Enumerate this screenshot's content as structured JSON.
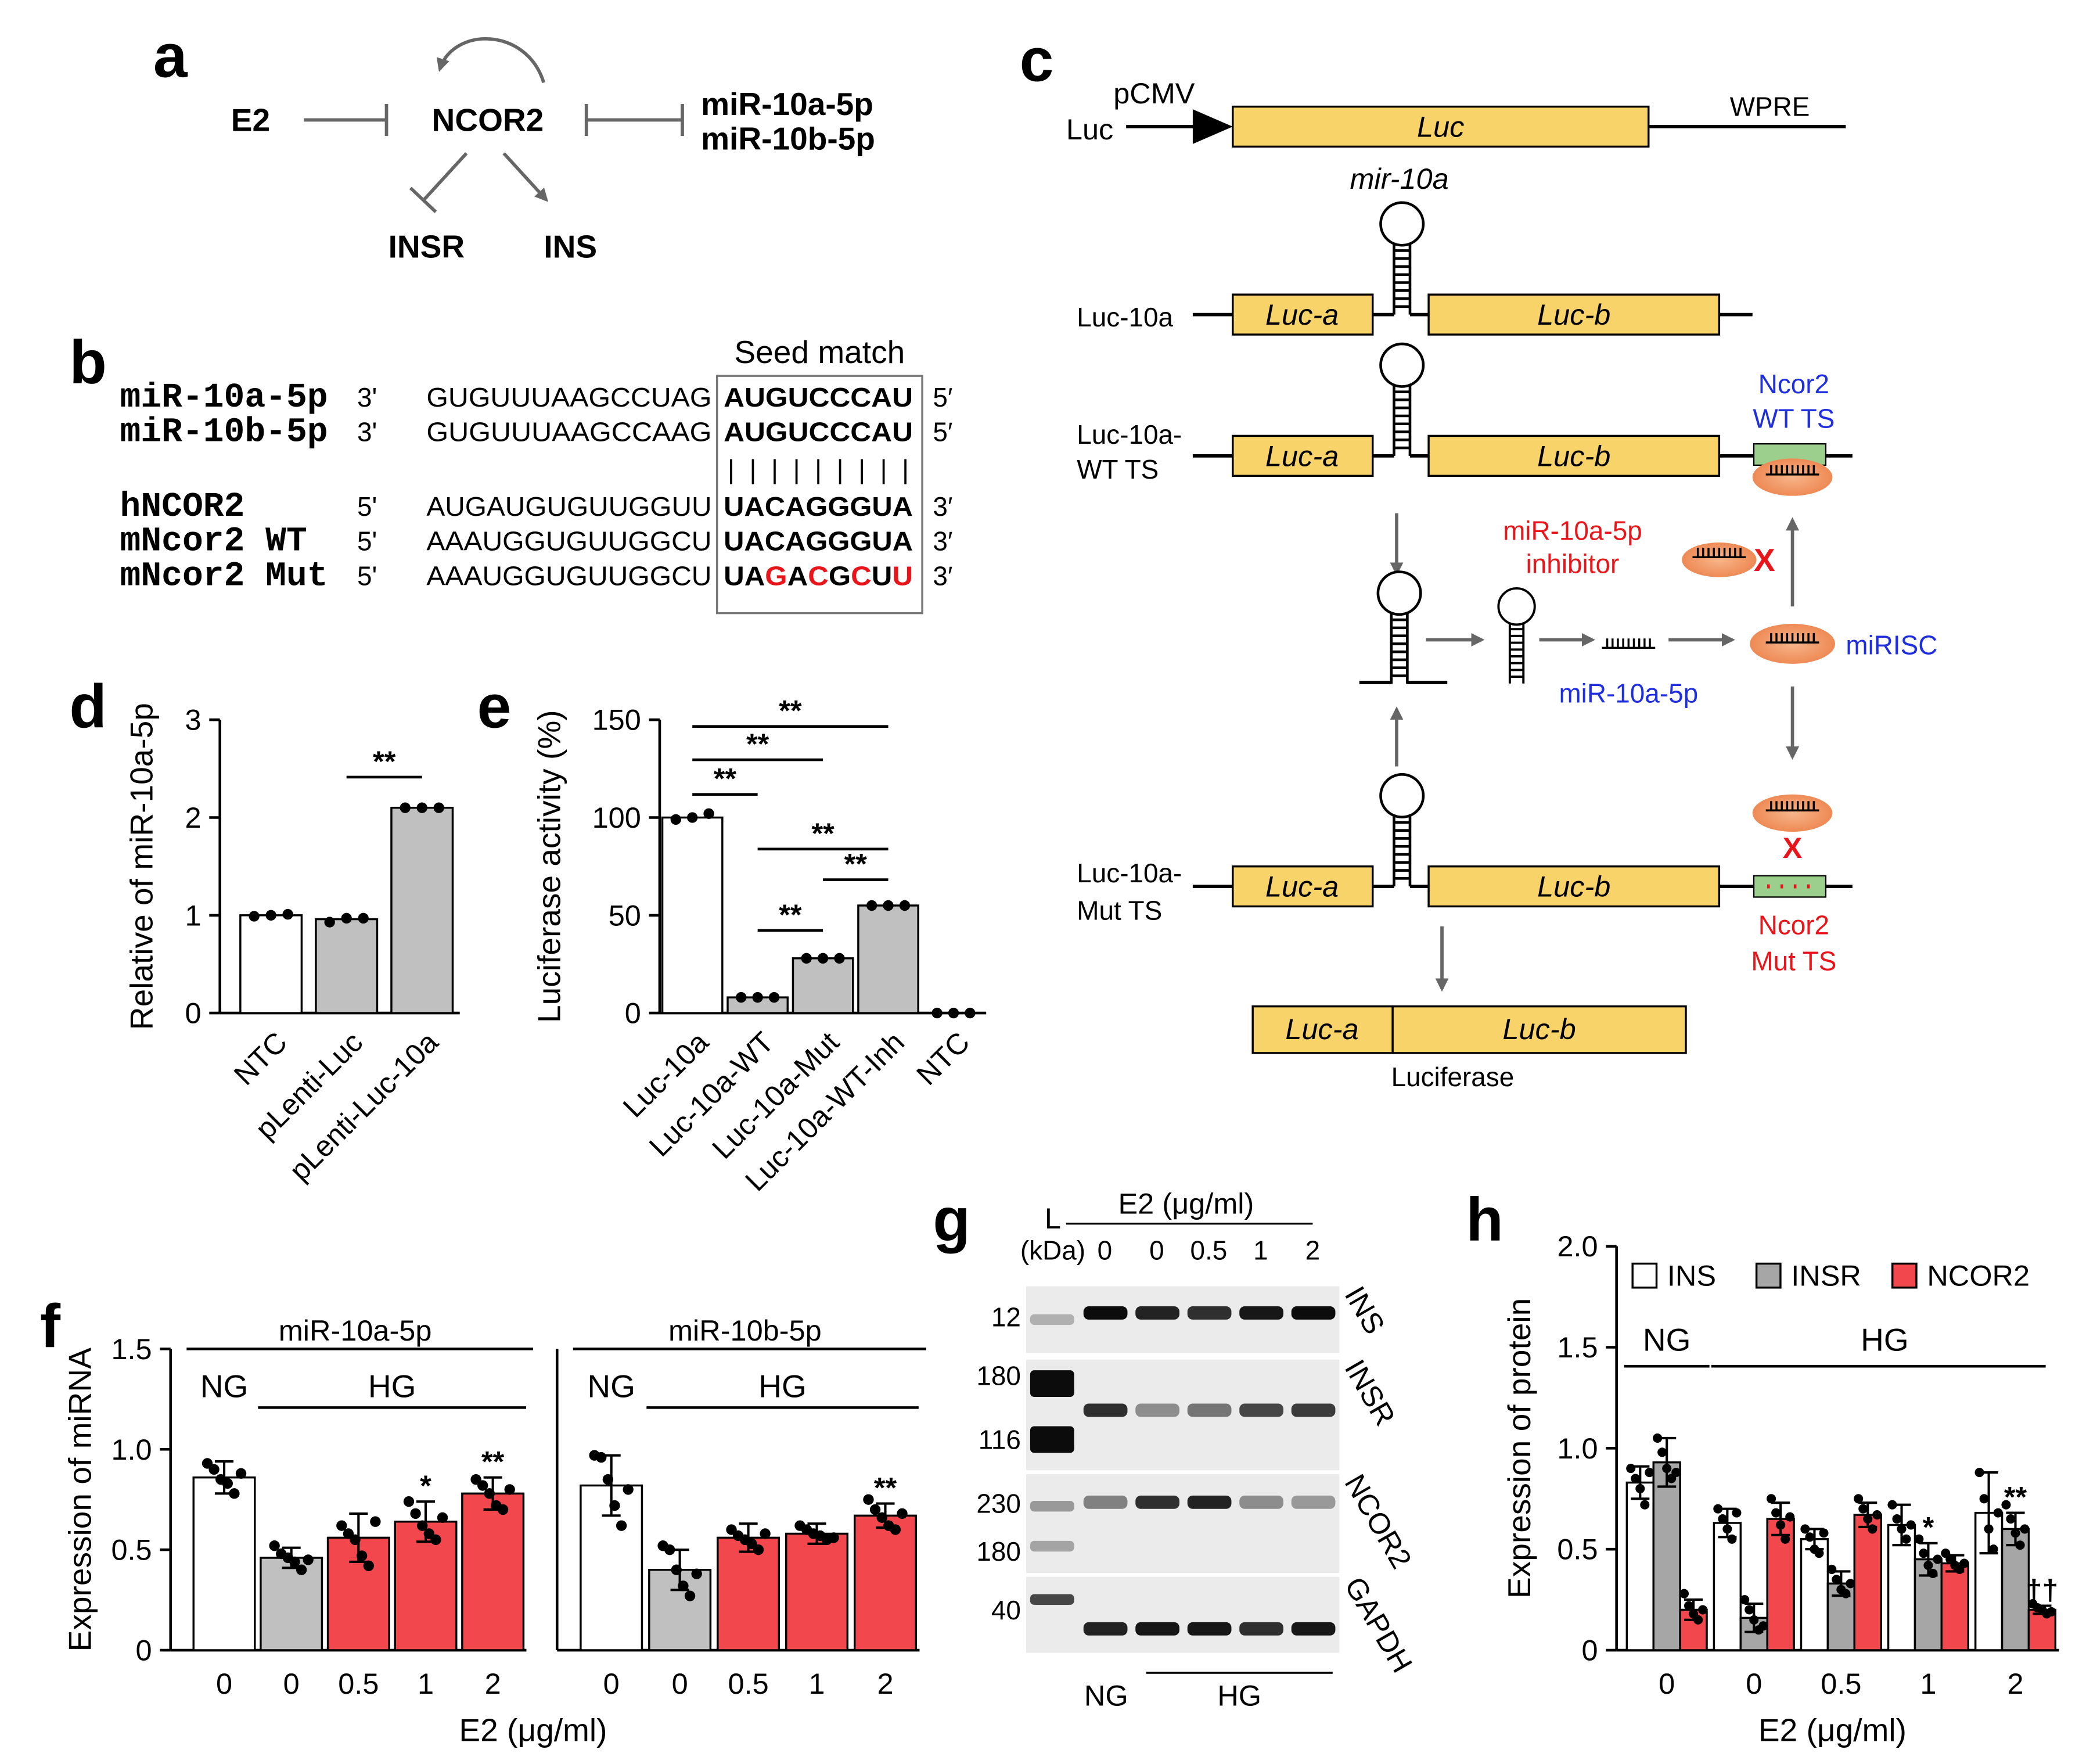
{
  "panel_a": {
    "label": "a",
    "e2": "E2",
    "ncor2": "NCOR2",
    "mir10a": "miR-10a-5p",
    "mir10b": "miR-10b-5p",
    "insr": "INSR",
    "ins": "INS"
  },
  "panel_b": {
    "label": "b",
    "box_title": "Seed match",
    "pairing": "|||||||||",
    "rows": [
      {
        "name": "miR-10a-5p",
        "left_end": "3'",
        "seq": "GUGUUUAAGCCUAG",
        "seed": [
          {
            "text": "AUGUCCCAU",
            "color": "#000000"
          }
        ],
        "right_end": "5′"
      },
      {
        "name": "miR-10b-5p",
        "left_end": "3'",
        "seq": "GUGUUUAAGCCAAG",
        "seed": [
          {
            "text": "AUGUCCCAU",
            "color": "#000000"
          }
        ],
        "right_end": "5′"
      },
      {
        "name": "hNCOR2",
        "left_end": "5'",
        "seq": "AUGAUGUGUUGGUU",
        "seed": [
          {
            "text": "UACAGGGUA",
            "color": "#000000"
          }
        ],
        "right_end": "3′"
      },
      {
        "name": "mNcor2 WT",
        "left_end": "5'",
        "seq": "AAAUGGUGUUGGCU",
        "seed": [
          {
            "text": "UACAGGGUA",
            "color": "#000000"
          }
        ],
        "right_end": "3′"
      },
      {
        "name": "mNcor2 Mut",
        "left_end": "5'",
        "seq": "AAAUGGUGUUGGCU",
        "seed": [
          {
            "text": "UA",
            "color": "#000000"
          },
          {
            "text": "G",
            "color": "#e8161b"
          },
          {
            "text": "A",
            "color": "#000000"
          },
          {
            "text": "C",
            "color": "#e8161b"
          },
          {
            "text": "G",
            "color": "#000000"
          },
          {
            "text": "C",
            "color": "#e8161b"
          },
          {
            "text": "U",
            "color": "#000000"
          },
          {
            "text": "U",
            "color": "#e8161b"
          }
        ],
        "right_end": "3′"
      }
    ]
  },
  "panel_c": {
    "label": "c",
    "vector_name": "Luc",
    "promoter": "pCMV",
    "gene": "Luc",
    "wpre": "WPRE",
    "hairpin": "mir-10a",
    "construct_1": "Luc-10a",
    "construct_2": [
      "Luc-10a-",
      "WT TS"
    ],
    "construct_3": [
      "Luc-10a-",
      "Mut TS"
    ],
    "part_a": "Luc-a",
    "part_b": "Luc-b",
    "wt_site": [
      "Ncor2",
      "WT TS"
    ],
    "mut_site": [
      "Ncor2",
      "Mut TS"
    ],
    "inhibitor": [
      "miR-10a-5p",
      "inhibitor"
    ],
    "mature": "miR-10a-5p",
    "complex": "miRISC",
    "block": "X",
    "product": "Luciferase"
  },
  "panel_g": {
    "label": "g",
    "ladder": "L",
    "unit": "(kDa)",
    "treatment": "E2 (μg/ml)",
    "lanes": [
      "0",
      "0",
      "0.5",
      "1",
      "2"
    ],
    "markers": [
      "12",
      "180",
      "116",
      "230",
      "180",
      "40"
    ],
    "proteins": [
      "INS",
      "INSR",
      "NCOR2",
      "GAPDH"
    ],
    "groups": [
      "NG",
      "HG"
    ]
  },
  "chart_data": [
    {
      "type": "bar",
      "label": "d",
      "ylabel": "Relative of miR-10a-5p",
      "categories": [
        "NTC",
        "pLenti-Luc",
        "pLenti-Luc-10a"
      ],
      "values": [
        1.0,
        0.96,
        2.1
      ],
      "colors": [
        "#ffffff",
        "#c0c0c0",
        "#c0c0c0"
      ],
      "points": [
        [
          0.99,
          1.0,
          1.01
        ],
        [
          0.93,
          0.97,
          0.97
        ],
        [
          2.1,
          2.1,
          2.1
        ]
      ],
      "ylim": [
        0,
        3
      ],
      "yticks": [
        0,
        1,
        2,
        3
      ],
      "brackets": [
        {
          "between": [
            "pLenti-Luc",
            "pLenti-Luc-10a"
          ],
          "label": "**"
        }
      ]
    },
    {
      "type": "bar",
      "label": "e",
      "ylabel": "Luciferase activity (%)",
      "categories": [
        "Luc-10a",
        "Luc-10a-WT",
        "Luc-10a-Mut",
        "Luc-10a-WT-Inh",
        "NTC"
      ],
      "values": [
        100,
        8,
        28,
        55,
        0
      ],
      "colors": [
        "#ffffff",
        "#c0c0c0",
        "#c0c0c0",
        "#c0c0c0",
        "#c0c0c0"
      ],
      "points": [
        [
          99,
          100,
          102
        ],
        [
          8,
          8,
          8
        ],
        [
          28,
          28,
          28
        ],
        [
          55,
          55,
          55
        ],
        [
          0,
          0,
          0
        ]
      ],
      "ylim": [
        0,
        150
      ],
      "yticks": [
        0,
        50,
        100,
        150
      ],
      "brackets": [
        {
          "between": [
            "Luc-10a",
            "Luc-10a-WT-Inh"
          ],
          "label": "**"
        },
        {
          "between": [
            "Luc-10a",
            "Luc-10a-Mut"
          ],
          "label": "**"
        },
        {
          "between": [
            "Luc-10a",
            "Luc-10a-WT"
          ],
          "label": "**"
        },
        {
          "between": [
            "Luc-10a-WT",
            "Luc-10a-WT-Inh"
          ],
          "label": "**"
        },
        {
          "between": [
            "Luc-10a-Mut",
            "Luc-10a-WT-Inh"
          ],
          "label": "**"
        },
        {
          "between": [
            "Luc-10a-WT",
            "Luc-10a-Mut"
          ],
          "label": "**"
        }
      ]
    },
    {
      "type": "bar",
      "label": "f",
      "title": "miR-10a-5p",
      "ylabel": "Expression of miRNA",
      "xlabel": "E2 (μg/ml)",
      "groups": [
        "NG",
        "HG"
      ],
      "categories": [
        "0",
        "0",
        "0.5",
        "1",
        "2"
      ],
      "values": [
        0.86,
        0.46,
        0.56,
        0.64,
        0.78
      ],
      "errors": [
        0.08,
        0.05,
        0.12,
        0.1,
        0.08
      ],
      "colors": [
        "#ffffff",
        "#c0c0c0",
        "#f2474d",
        "#f2474d",
        "#f2474d"
      ],
      "points": [
        [
          0.93,
          0.9,
          0.85,
          0.83,
          0.78,
          0.88
        ],
        [
          0.52,
          0.48,
          0.46,
          0.44,
          0.4,
          0.45
        ],
        [
          0.62,
          0.58,
          0.55,
          0.47,
          0.42,
          0.64
        ],
        [
          0.74,
          0.68,
          0.62,
          0.58,
          0.55,
          0.66
        ],
        [
          0.85,
          0.82,
          0.78,
          0.72,
          0.7,
          0.8
        ]
      ],
      "significance": [
        null,
        null,
        null,
        "*",
        "**"
      ],
      "ylim": [
        0,
        1.5
      ],
      "yticks": [
        0,
        0.5,
        {
          "value": 1,
          "label": "1.0"
        },
        1.5
      ]
    },
    {
      "type": "bar",
      "title": "miR-10b-5p",
      "groups": [
        "NG",
        "HG"
      ],
      "categories": [
        "0",
        "0",
        "0.5",
        "1",
        "2"
      ],
      "values": [
        0.82,
        0.4,
        0.56,
        0.58,
        0.67
      ],
      "errors": [
        0.15,
        0.1,
        0.07,
        0.05,
        0.06
      ],
      "colors": [
        "#ffffff",
        "#c0c0c0",
        "#f2474d",
        "#f2474d",
        "#f2474d"
      ],
      "points": [
        [
          0.97,
          0.96,
          0.85,
          0.72,
          0.62,
          0.8
        ],
        [
          0.52,
          0.5,
          0.4,
          0.32,
          0.27,
          0.38
        ],
        [
          0.6,
          0.57,
          0.55,
          0.53,
          0.5,
          0.58
        ],
        [
          0.62,
          0.6,
          0.58,
          0.57,
          0.55,
          0.56
        ],
        [
          0.75,
          0.7,
          0.66,
          0.62,
          0.6,
          0.68
        ]
      ],
      "significance": [
        null,
        null,
        null,
        null,
        "**"
      ],
      "ylim": [
        0,
        1.5
      ]
    },
    {
      "type": "grouped_bar",
      "label": "h",
      "ylabel": "Expression of protein",
      "xlabel": "E2 (μg/ml)",
      "groups": [
        "NG",
        "HG"
      ],
      "categories": [
        "0",
        "0",
        "0.5",
        "1",
        "2"
      ],
      "legend": "top",
      "ylim": [
        0,
        2
      ],
      "yticks": [
        0,
        0.5,
        {
          "value": 1,
          "label": "1.0"
        },
        1.5,
        {
          "value": 2,
          "label": "2.0"
        }
      ],
      "series": [
        {
          "name": "INS",
          "color": "#ffffff",
          "values": [
            0.83,
            0.63,
            0.55,
            0.62,
            0.68
          ],
          "errors": [
            0.08,
            0.07,
            0.05,
            0.1,
            0.2
          ],
          "points": [
            [
              0.9,
              0.85,
              0.8,
              0.72,
              0.88
            ],
            [
              0.7,
              0.65,
              0.6,
              0.55,
              0.68
            ],
            [
              0.6,
              0.56,
              0.5,
              0.48,
              0.58
            ],
            [
              0.72,
              0.65,
              0.6,
              0.55,
              0.62
            ],
            [
              0.88,
              0.75,
              0.6,
              0.5,
              0.68
            ]
          ],
          "significance": [
            null,
            null,
            null,
            null,
            null
          ]
        },
        {
          "name": "INSR",
          "color": "#a6a6a6",
          "values": [
            0.93,
            0.16,
            0.33,
            0.45,
            0.6
          ],
          "errors": [
            0.12,
            0.07,
            0.06,
            0.08,
            0.08
          ],
          "points": [
            [
              1.05,
              0.98,
              0.9,
              0.85,
              0.88
            ],
            [
              0.25,
              0.2,
              0.15,
              0.1,
              0.12
            ],
            [
              0.4,
              0.35,
              0.3,
              0.28,
              0.33
            ],
            [
              0.55,
              0.48,
              0.42,
              0.38,
              0.45
            ],
            [
              0.72,
              0.65,
              0.58,
              0.52,
              0.6
            ]
          ],
          "significance": [
            null,
            null,
            null,
            "*",
            "**"
          ]
        },
        {
          "name": "NCOR2",
          "color": "#f2474d",
          "values": [
            0.2,
            0.65,
            0.67,
            0.43,
            0.2
          ],
          "errors": [
            0.05,
            0.08,
            0.06,
            0.04,
            0.02
          ],
          "points": [
            [
              0.28,
              0.22,
              0.18,
              0.15,
              0.2
            ],
            [
              0.75,
              0.68,
              0.62,
              0.55,
              0.66
            ],
            [
              0.75,
              0.7,
              0.65,
              0.6,
              0.67
            ],
            [
              0.48,
              0.45,
              0.42,
              0.4,
              0.43
            ],
            [
              0.23,
              0.21,
              0.2,
              0.18,
              0.19
            ]
          ],
          "significance": [
            null,
            null,
            null,
            null,
            "††"
          ]
        }
      ]
    }
  ]
}
